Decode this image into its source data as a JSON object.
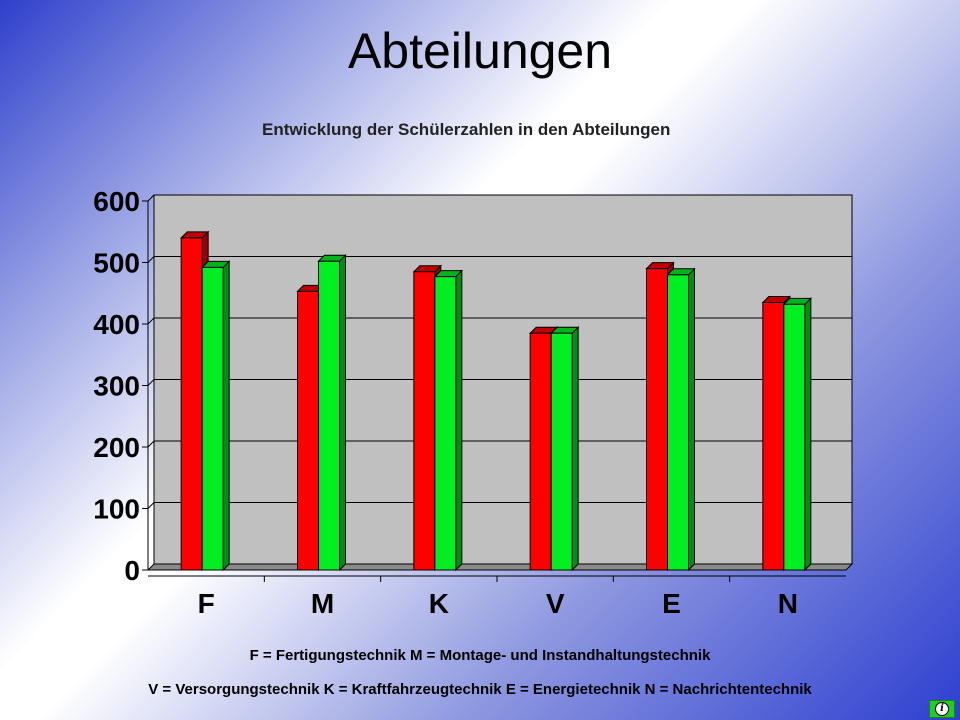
{
  "page": {
    "title": "Abteilungen",
    "legend_line1": "F = Fertigungstechnik M = Montage- und Instandhaltungstechnik",
    "legend_line2": "V = Versorgungstechnik K = Kraftfahrzeugtechnik E = Energietechnik N = Nachrichtentechnik",
    "info_glyph": "i"
  },
  "colors": {
    "series1": "#ff0000",
    "series2": "#00ee22",
    "plot_background": "#c0c0c0"
  },
  "chart_data": {
    "type": "bar",
    "title": "Entwicklung der Schülerzahlen in den Abteilungen",
    "xlabel": "",
    "ylabel": "",
    "categories": [
      "F",
      "M",
      "K",
      "V",
      "E",
      "N"
    ],
    "series": [
      {
        "values": [
          540,
          453,
          485,
          385,
          490,
          435
        ]
      },
      {
        "values": [
          492,
          502,
          477,
          385,
          480,
          432
        ]
      }
    ],
    "ylim": [
      0,
      600
    ],
    "yticks": [
      0,
      100,
      200,
      300,
      400,
      500,
      600
    ],
    "grid": true,
    "legend": "none",
    "style": "3d-clustered"
  }
}
